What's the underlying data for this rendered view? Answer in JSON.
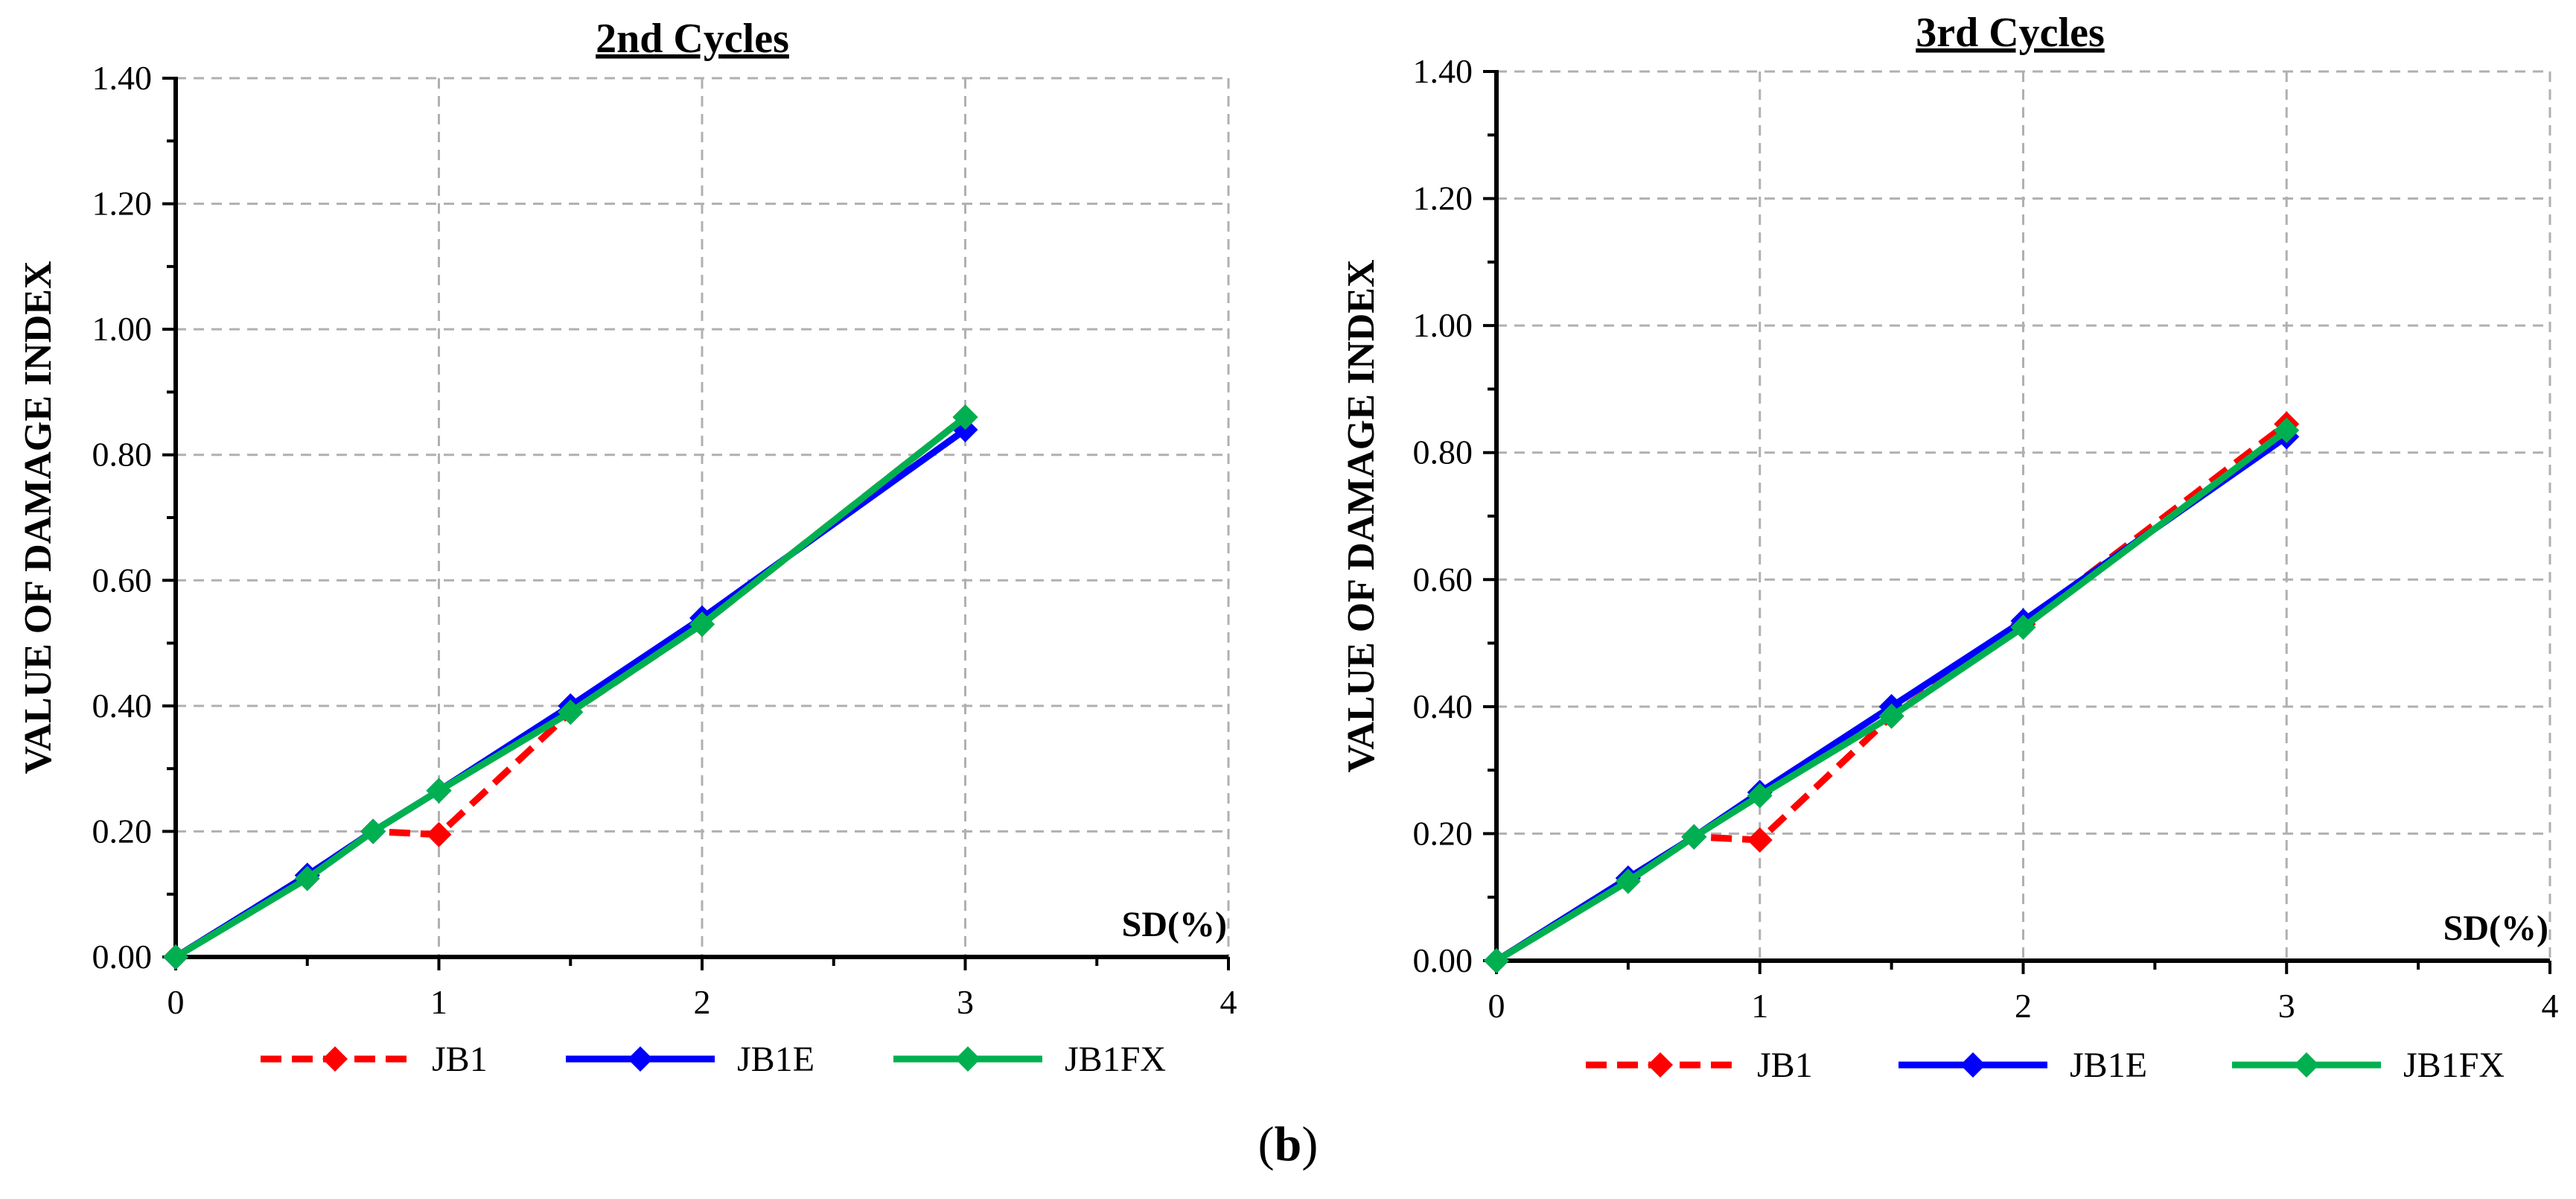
{
  "caption": {
    "open": "(",
    "letter": "b",
    "close": ")"
  },
  "chart_data": [
    {
      "type": "line",
      "title": "2nd Cycles",
      "xlabel": "SD(%)",
      "ylabel": "VALUE OF DAMAGE INDEX",
      "xlim": [
        0,
        4
      ],
      "ylim": [
        0,
        1.4
      ],
      "xticks": [
        "0",
        "1",
        "2",
        "3",
        "4"
      ],
      "yticks": [
        "0.00",
        "0.20",
        "0.40",
        "0.60",
        "0.80",
        "1.00",
        "1.20",
        "1.40"
      ],
      "grid": true,
      "legend_position": "bottom",
      "series": [
        {
          "name": "JB1",
          "color": "#ff0000",
          "dashed": true,
          "x": [
            0,
            0.5,
            0.75,
            1,
            1.5,
            2,
            3
          ],
          "y": [
            0.0,
            0.13,
            0.2,
            0.195,
            0.39,
            0.53,
            0.86
          ]
        },
        {
          "name": "JB1E",
          "color": "#0000ff",
          "dashed": false,
          "x": [
            0,
            0.5,
            0.75,
            1,
            1.5,
            2,
            3
          ],
          "y": [
            0.0,
            0.13,
            0.2,
            0.265,
            0.4,
            0.54,
            0.84
          ]
        },
        {
          "name": "JB1FX",
          "color": "#00b050",
          "dashed": false,
          "x": [
            0,
            0.5,
            0.75,
            1,
            1.5,
            2,
            3
          ],
          "y": [
            0.0,
            0.125,
            0.2,
            0.265,
            0.39,
            0.53,
            0.86
          ]
        }
      ]
    },
    {
      "type": "line",
      "title": "3rd  Cycles",
      "xlabel": "SD(%)",
      "ylabel": "VALUE OF DAMAGE INDEX",
      "xlim": [
        0,
        4
      ],
      "ylim": [
        0,
        1.4
      ],
      "xticks": [
        "0",
        "1",
        "2",
        "3",
        "4"
      ],
      "yticks": [
        "0.00",
        "0.20",
        "0.40",
        "0.60",
        "0.80",
        "1.00",
        "1.20",
        "1.40"
      ],
      "grid": true,
      "legend_position": "bottom",
      "series": [
        {
          "name": "JB1",
          "color": "#ff0000",
          "dashed": true,
          "x": [
            0,
            0.5,
            0.75,
            1,
            1.5,
            2,
            3
          ],
          "y": [
            0.0,
            0.13,
            0.195,
            0.19,
            0.385,
            0.53,
            0.845
          ]
        },
        {
          "name": "JB1E",
          "color": "#0000ff",
          "dashed": false,
          "x": [
            0,
            0.5,
            0.75,
            1,
            1.5,
            2,
            3
          ],
          "y": [
            0.0,
            0.13,
            0.195,
            0.265,
            0.4,
            0.535,
            0.825
          ]
        },
        {
          "name": "JB1FX",
          "color": "#00b050",
          "dashed": false,
          "x": [
            0,
            0.5,
            0.75,
            1,
            1.5,
            2,
            3
          ],
          "y": [
            0.0,
            0.125,
            0.195,
            0.26,
            0.385,
            0.525,
            0.835
          ]
        }
      ]
    }
  ]
}
